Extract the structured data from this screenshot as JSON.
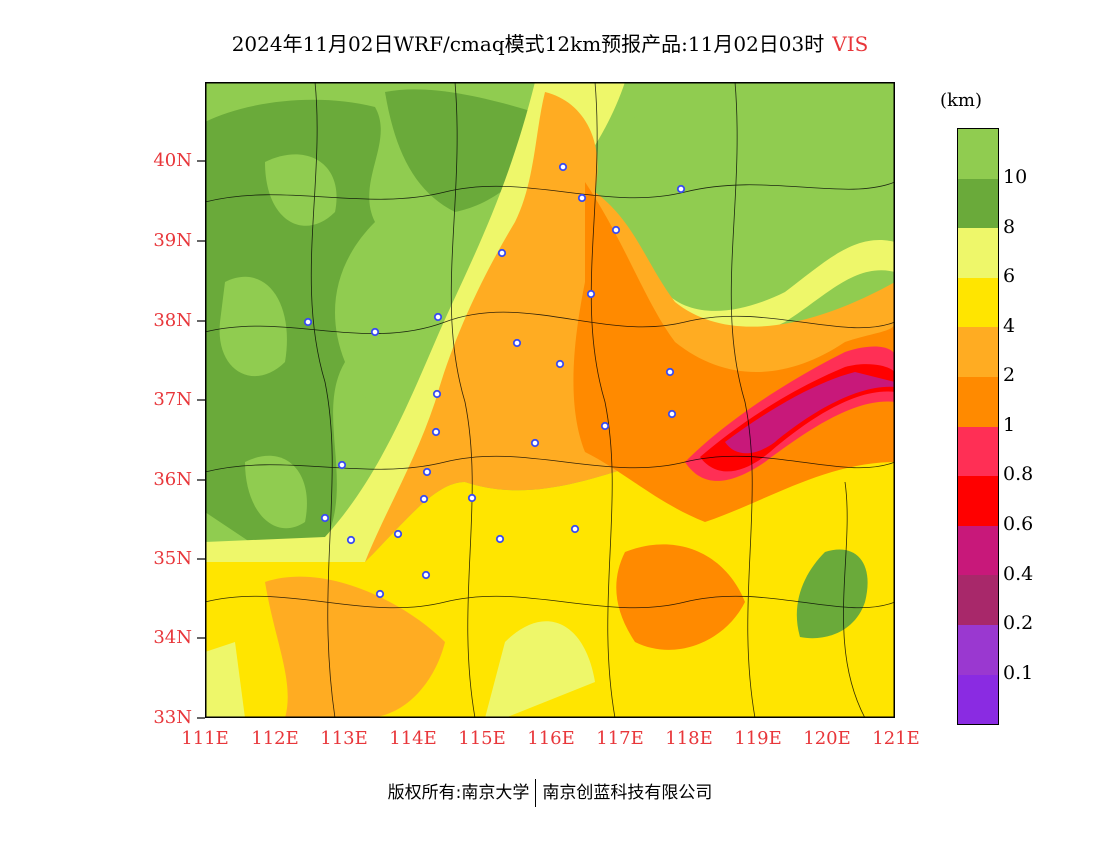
{
  "title": {
    "text": "2024年11月02日WRF/cmaq模式12km预报产品:11月02日03时",
    "variable": "VIS"
  },
  "map": {
    "lat_labels": [
      "40N",
      "39N",
      "38N",
      "37N",
      "36N",
      "35N",
      "34N",
      "33N"
    ],
    "lon_labels": [
      "111E",
      "112E",
      "113E",
      "114E",
      "115E",
      "116E",
      "117E",
      "118E",
      "119E",
      "120E",
      "121E"
    ],
    "colors": {
      "green_light": "#90cc50",
      "green_dark": "#6aaa3a",
      "yellow_light": "#eef76a",
      "yellow": "#ffe500",
      "orange_light": "#ffac22",
      "orange": "#ff8a00",
      "red_pink": "#ff2f55",
      "red": "#ff0000",
      "magenta": "#c8187a",
      "maroon": "#a8286a"
    }
  },
  "legend": {
    "unit": "(km)",
    "labels": [
      "10",
      "8",
      "6",
      "4",
      "2",
      "1",
      "0.8",
      "0.6",
      "0.4",
      "0.2",
      "0.1"
    ],
    "swatches": [
      "#90cc50",
      "#6aaa3a",
      "#eef76a",
      "#ffe500",
      "#ffac22",
      "#ff8a00",
      "#ff2f55",
      "#ff0000",
      "#c8187a",
      "#a8286a",
      "#9a38d0",
      "#8a2be2"
    ]
  },
  "copyright": {
    "left": "版权所有:南京大学",
    "right": "南京创蓝科技有限公司"
  }
}
